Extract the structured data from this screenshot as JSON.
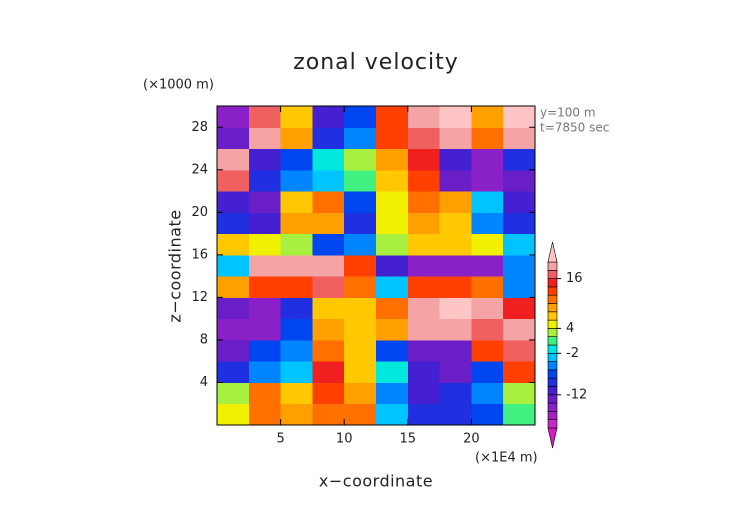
{
  "chart_data": {
    "type": "heatmap",
    "title": "zonal velocity",
    "x_label": "x−coordinate",
    "y_label": "z−coordinate",
    "x_unit_label": "(×1E4 m)",
    "y_unit_label": "(×1000 m)",
    "annotations": [
      "y=100 m",
      "t=7850 sec"
    ],
    "xlim": [
      0,
      25
    ],
    "ylim": [
      0,
      30
    ],
    "xticks": [
      5,
      10,
      15,
      20
    ],
    "yticks": [
      4,
      8,
      12,
      16,
      20,
      24,
      28
    ],
    "x": [
      1.25,
      3.75,
      6.25,
      8.75,
      11.25,
      13.75,
      16.25,
      18.75,
      21.25,
      23.75
    ],
    "y": [
      1,
      3,
      5,
      7,
      9,
      11,
      13,
      15,
      17,
      19,
      21,
      23,
      25,
      27,
      29
    ],
    "z": [
      [
        4,
        10,
        8,
        10,
        10,
        -4,
        -10,
        -10,
        -8,
        0
      ],
      [
        3,
        10,
        6,
        12,
        8,
        -6,
        -12,
        -10,
        -6,
        2
      ],
      [
        -10,
        -6,
        -4,
        14,
        6,
        -2,
        -12,
        -14,
        -8,
        12
      ],
      [
        -14,
        -8,
        -6,
        10,
        6,
        -8,
        -14,
        -14,
        12,
        16
      ],
      [
        -16,
        -16,
        -8,
        8,
        6,
        8,
        18,
        18,
        16,
        18
      ],
      [
        -14,
        -16,
        -10,
        6,
        6,
        10,
        18,
        20,
        18,
        14
      ],
      [
        8,
        12,
        12,
        16,
        10,
        -4,
        12,
        12,
        10,
        -6
      ],
      [
        -4,
        18,
        18,
        18,
        12,
        -12,
        -16,
        -16,
        -16,
        -6
      ],
      [
        6,
        4,
        2,
        -8,
        -6,
        2,
        6,
        6,
        4,
        -4
      ],
      [
        -10,
        -12,
        8,
        8,
        -10,
        4,
        8,
        6,
        -6,
        -10
      ],
      [
        -12,
        -14,
        6,
        10,
        -8,
        4,
        10,
        8,
        -4,
        -12
      ],
      [
        16,
        -10,
        -6,
        -4,
        0,
        6,
        12,
        -14,
        -16,
        -14
      ],
      [
        18,
        -12,
        -8,
        -2,
        2,
        8,
        14,
        -12,
        -16,
        -10
      ],
      [
        -14,
        18,
        8,
        -10,
        -6,
        12,
        16,
        18,
        10,
        18
      ],
      [
        -16,
        16,
        6,
        -12,
        -8,
        12,
        18,
        20,
        8,
        20
      ]
    ],
    "levels": [
      -20,
      -18,
      -16,
      -14,
      -12,
      -10,
      -8,
      -6,
      -4,
      -2,
      0,
      2,
      4,
      6,
      8,
      10,
      12,
      14,
      16,
      18,
      20
    ],
    "colors": [
      "#d81cc4",
      "#c22cc4",
      "#a420c4",
      "#8a20c8",
      "#6a1ec8",
      "#4420d0",
      "#2030e0",
      "#0046f0",
      "#0084ff",
      "#00c4ff",
      "#00e8dc",
      "#40f080",
      "#a8f040",
      "#f0f000",
      "#ffc800",
      "#ffa000",
      "#ff7000",
      "#ff4000",
      "#f02020",
      "#f06060",
      "#f4a4a4",
      "#ffc4c4"
    ],
    "colorbar_ticks": [
      -12,
      -2,
      4,
      16
    ]
  }
}
